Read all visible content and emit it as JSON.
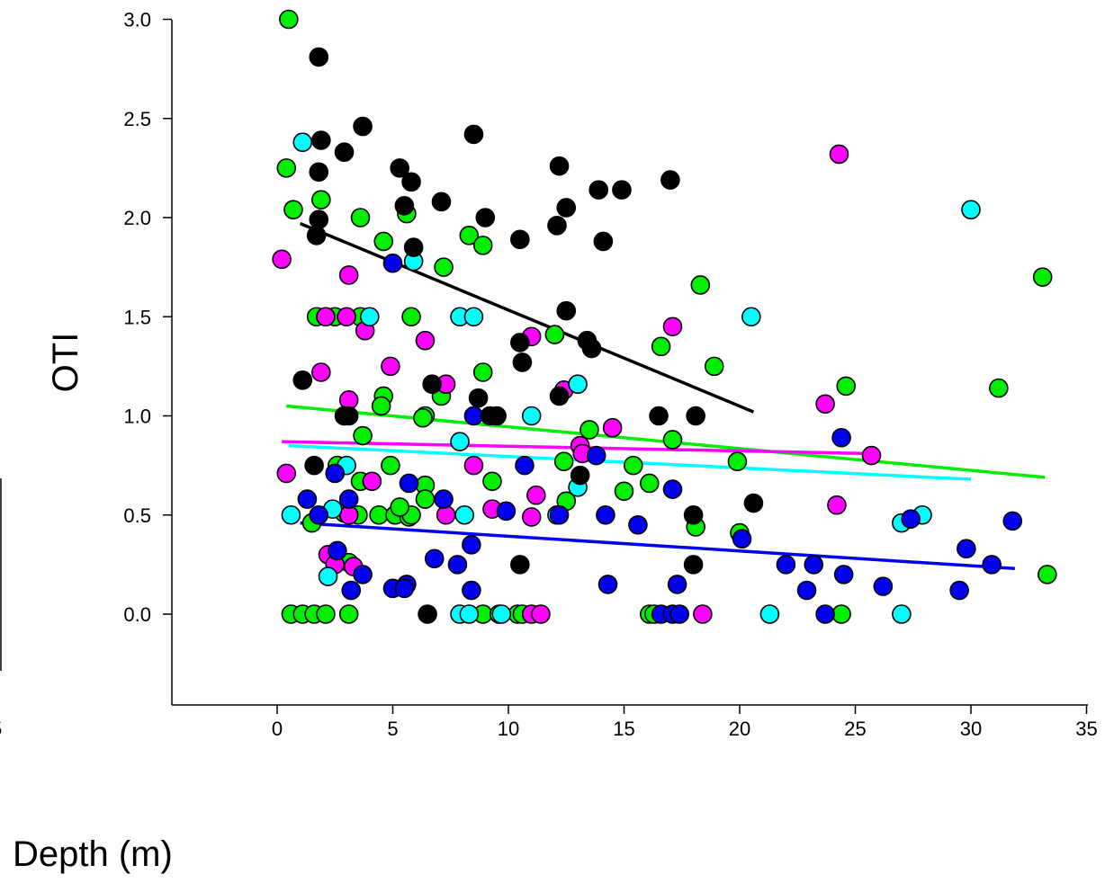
{
  "chart_data": {
    "type": "scatter",
    "title": "",
    "xlabel": "Depth (m)",
    "ylabel": "OTI",
    "xlim": [
      -4.5,
      35
    ],
    "ylim": [
      -0.45,
      3.05
    ],
    "x_ticks": [
      0,
      5,
      10,
      15,
      20,
      25,
      30,
      35
    ],
    "x_tick_labels": [
      "0",
      "5",
      "10",
      "15",
      "20",
      "25",
      "30",
      "35"
    ],
    "y_ticks": [
      0.0,
      0.5,
      1.0,
      1.5,
      2.0,
      2.5,
      3.0
    ],
    "y_tick_labels": [
      "0.0",
      "0.5",
      "1.0",
      "1.5",
      "2.0",
      "2.5",
      "3.0"
    ],
    "grid": false,
    "legend": "none",
    "clipped_fragments": {
      "left_tick_label": "5"
    },
    "series": [
      {
        "color": "#000000",
        "points": [
          [
            1.8,
            2.81
          ],
          [
            3.7,
            2.46
          ],
          [
            8.5,
            2.42
          ],
          [
            1.9,
            2.39
          ],
          [
            2.9,
            2.33
          ],
          [
            1.8,
            2.23
          ],
          [
            5.3,
            2.25
          ],
          [
            5.8,
            2.18
          ],
          [
            12.2,
            2.26
          ],
          [
            17,
            2.19
          ],
          [
            13.9,
            2.14
          ],
          [
            14.9,
            2.14
          ],
          [
            7.1,
            2.08
          ],
          [
            5.5,
            2.06
          ],
          [
            12.5,
            2.05
          ],
          [
            1.8,
            1.99
          ],
          [
            9,
            2
          ],
          [
            12.1,
            1.96
          ],
          [
            1.7,
            1.91
          ],
          [
            5.9,
            1.85
          ],
          [
            10.5,
            1.89
          ],
          [
            14.1,
            1.88
          ],
          [
            12.5,
            1.53
          ],
          [
            13.4,
            1.38
          ],
          [
            10.5,
            1.37
          ],
          [
            13.6,
            1.34
          ],
          [
            10.6,
            1.27
          ],
          [
            1.1,
            1.18
          ],
          [
            6.7,
            1.16
          ],
          [
            8.7,
            1.09
          ],
          [
            12.2,
            1.1
          ],
          [
            2.9,
            1
          ],
          [
            3.1,
            1
          ],
          [
            9.2,
            1
          ],
          [
            9.5,
            1
          ],
          [
            16.5,
            1
          ],
          [
            18.1,
            1
          ],
          [
            1.6,
            0.75
          ],
          [
            13.1,
            0.7
          ],
          [
            20.6,
            0.56
          ],
          [
            18,
            0.5
          ],
          [
            10.5,
            0.25
          ],
          [
            18,
            0.25
          ],
          [
            6.5,
            0
          ]
        ],
        "trend": [
          [
            1.0,
            1.97
          ],
          [
            20.6,
            1.02
          ]
        ]
      },
      {
        "color": "#00ee00",
        "points": [
          [
            0.5,
            3
          ],
          [
            0.4,
            2.25
          ],
          [
            1.9,
            2.09
          ],
          [
            0.7,
            2.04
          ],
          [
            3.6,
            2
          ],
          [
            5.6,
            2.02
          ],
          [
            4.6,
            1.88
          ],
          [
            8.3,
            1.91
          ],
          [
            8.9,
            1.86
          ],
          [
            7.2,
            1.75
          ],
          [
            18.3,
            1.66
          ],
          [
            33.1,
            1.7
          ],
          [
            1.7,
            1.5
          ],
          [
            2.1,
            1.5
          ],
          [
            2.5,
            1.5
          ],
          [
            3.6,
            1.5
          ],
          [
            5.8,
            1.5
          ],
          [
            12,
            1.41
          ],
          [
            16.6,
            1.35
          ],
          [
            18.9,
            1.25
          ],
          [
            8.9,
            1.22
          ],
          [
            24.6,
            1.15
          ],
          [
            31.2,
            1.14
          ],
          [
            4.6,
            1.1
          ],
          [
            7.1,
            1.1
          ],
          [
            4.5,
            1.05
          ],
          [
            6.4,
            1
          ],
          [
            6.3,
            0.99
          ],
          [
            13.5,
            0.93
          ],
          [
            3.7,
            0.9
          ],
          [
            17.1,
            0.88
          ],
          [
            19.9,
            0.77
          ],
          [
            2.6,
            0.75
          ],
          [
            4.9,
            0.75
          ],
          [
            12.4,
            0.77
          ],
          [
            15.4,
            0.75
          ],
          [
            3.6,
            0.67
          ],
          [
            9.3,
            0.67
          ],
          [
            6.4,
            0.65
          ],
          [
            16.1,
            0.66
          ],
          [
            15,
            0.62
          ],
          [
            6.4,
            0.58
          ],
          [
            12.5,
            0.57
          ],
          [
            2.9,
            0.51
          ],
          [
            3.5,
            0.5
          ],
          [
            4.4,
            0.5
          ],
          [
            5.1,
            0.5
          ],
          [
            5.7,
            0.49
          ],
          [
            5.8,
            0.5
          ],
          [
            5.3,
            0.54
          ],
          [
            1.5,
            0.46
          ],
          [
            18.1,
            0.44
          ],
          [
            20,
            0.41
          ],
          [
            3.1,
            0.26
          ],
          [
            33.3,
            0.2
          ],
          [
            0.6,
            0
          ],
          [
            1.1,
            0
          ],
          [
            1.6,
            0
          ],
          [
            2.1,
            0
          ],
          [
            3.1,
            0
          ],
          [
            8.9,
            0
          ],
          [
            9.6,
            0
          ],
          [
            10.4,
            0
          ],
          [
            10.6,
            0
          ],
          [
            16.1,
            0
          ],
          [
            16.3,
            0
          ],
          [
            24.4,
            0
          ]
        ],
        "trend": [
          [
            0.4,
            1.05
          ],
          [
            33.2,
            0.69
          ]
        ]
      },
      {
        "color": "#ff00ff",
        "points": [
          [
            24.3,
            2.32
          ],
          [
            0.2,
            1.79
          ],
          [
            3.1,
            1.71
          ],
          [
            2.1,
            1.5
          ],
          [
            3,
            1.5
          ],
          [
            17.1,
            1.45
          ],
          [
            3.8,
            1.43
          ],
          [
            6.4,
            1.38
          ],
          [
            11,
            1.4
          ],
          [
            4.9,
            1.25
          ],
          [
            1.9,
            1.22
          ],
          [
            7.3,
            1.16
          ],
          [
            12.4,
            1.13
          ],
          [
            3.1,
            1.08
          ],
          [
            23.7,
            1.06
          ],
          [
            14.5,
            0.94
          ],
          [
            13.1,
            0.85
          ],
          [
            13.2,
            0.81
          ],
          [
            25.7,
            0.8
          ],
          [
            8.5,
            0.75
          ],
          [
            0.4,
            0.71
          ],
          [
            4.1,
            0.67
          ],
          [
            11.2,
            0.6
          ],
          [
            9.3,
            0.53
          ],
          [
            7.3,
            0.5
          ],
          [
            11,
            0.49
          ],
          [
            3.1,
            0.5
          ],
          [
            24.2,
            0.55
          ],
          [
            2.2,
            0.3
          ],
          [
            2.5,
            0.25
          ],
          [
            3.3,
            0.24
          ],
          [
            11,
            0
          ],
          [
            11.4,
            0
          ],
          [
            18.4,
            0
          ]
        ],
        "trend": [
          [
            0.2,
            0.87
          ],
          [
            25.5,
            0.81
          ]
        ]
      },
      {
        "color": "#00ffff",
        "points": [
          [
            1.1,
            2.38
          ],
          [
            5.9,
            1.78
          ],
          [
            30,
            2.04
          ],
          [
            4,
            1.5
          ],
          [
            7.9,
            1.5
          ],
          [
            8.5,
            1.5
          ],
          [
            20.5,
            1.5
          ],
          [
            13,
            1.16
          ],
          [
            11,
            1
          ],
          [
            7.9,
            0.87
          ],
          [
            13,
            0.64
          ],
          [
            3,
            0.75
          ],
          [
            2.4,
            0.53
          ],
          [
            0.6,
            0.5
          ],
          [
            8.1,
            0.5
          ],
          [
            12.1,
            0.5
          ],
          [
            27.9,
            0.5
          ],
          [
            27,
            0.46
          ],
          [
            2.2,
            0.19
          ],
          [
            7.9,
            0
          ],
          [
            8.3,
            0
          ],
          [
            9.7,
            0
          ],
          [
            21.3,
            0
          ],
          [
            27,
            0
          ]
        ],
        "trend": [
          [
            0.5,
            0.85
          ],
          [
            30,
            0.68
          ]
        ]
      },
      {
        "color": "#0000ee",
        "points": [
          [
            5,
            1.77
          ],
          [
            8.5,
            1
          ],
          [
            13.8,
            0.8
          ],
          [
            24.4,
            0.89
          ],
          [
            10.7,
            0.75
          ],
          [
            17.1,
            0.63
          ],
          [
            1.3,
            0.58
          ],
          [
            3.1,
            0.58
          ],
          [
            7.2,
            0.58
          ],
          [
            5.7,
            0.66
          ],
          [
            2.5,
            0.71
          ],
          [
            1.8,
            0.5
          ],
          [
            9.9,
            0.52
          ],
          [
            12.2,
            0.5
          ],
          [
            14.2,
            0.5
          ],
          [
            27.4,
            0.48
          ],
          [
            31.8,
            0.47
          ],
          [
            15.6,
            0.45
          ],
          [
            20.1,
            0.38
          ],
          [
            29.8,
            0.33
          ],
          [
            2.6,
            0.32
          ],
          [
            6.8,
            0.28
          ],
          [
            7.8,
            0.25
          ],
          [
            22,
            0.25
          ],
          [
            23.2,
            0.25
          ],
          [
            30.9,
            0.25
          ],
          [
            3.7,
            0.2
          ],
          [
            24.5,
            0.2
          ],
          [
            8.4,
            0.35
          ],
          [
            5,
            0.13
          ],
          [
            5.6,
            0.15
          ],
          [
            5.5,
            0.13
          ],
          [
            3.2,
            0.12
          ],
          [
            8.4,
            0.12
          ],
          [
            14.3,
            0.15
          ],
          [
            17.3,
            0.15
          ],
          [
            26.2,
            0.14
          ],
          [
            22.9,
            0.12
          ],
          [
            29.5,
            0.12
          ],
          [
            16.6,
            0
          ],
          [
            17.1,
            0
          ],
          [
            17.4,
            0
          ],
          [
            23.7,
            0
          ]
        ],
        "trend": [
          [
            1.0,
            0.46
          ],
          [
            31.9,
            0.23
          ]
        ]
      }
    ]
  }
}
